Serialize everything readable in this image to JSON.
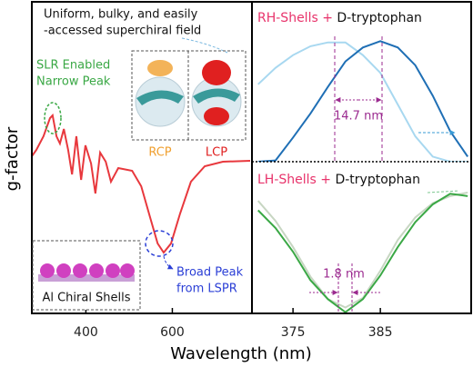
{
  "chart_data": [
    {
      "type": "line",
      "y_label": "g-factor",
      "x_label": "Wavelength (nm)",
      "x": [
        275,
        285.5,
        302,
        317,
        323,
        332,
        340,
        349,
        359,
        368,
        378,
        389,
        399,
        412,
        422,
        433,
        446,
        458,
        475,
        507,
        528,
        549,
        566,
        580,
        597,
        618,
        643,
        675,
        717,
        780
      ],
      "series": [
        {
          "color": "#e8383d",
          "values": [
            0.03,
            0.1,
            0.25,
            0.45,
            0.48,
            0.25,
            0.17,
            0.33,
            0.1,
            -0.17,
            0.25,
            -0.23,
            0.15,
            -0.05,
            -0.38,
            0.07,
            -0.03,
            -0.25,
            -0.1,
            -0.13,
            -0.3,
            -0.65,
            -0.93,
            -1.03,
            -0.93,
            -0.6,
            -0.25,
            -0.08,
            -0.03,
            -0.02
          ]
        }
      ],
      "xlim": [
        275,
        780
      ],
      "ylim": [
        -1.7,
        1.73
      ],
      "xticks": [
        400,
        600
      ],
      "annotations": {
        "field_line1": "Uniform, bulky, and easily",
        "field_line2": "-accessed superchiral field",
        "slr_line1": "SLR Enabled",
        "slr_line2": "Narrow Peak",
        "rcp": "RCP",
        "lcp": "LCP",
        "lspr_line1": "Broad Peak",
        "lspr_line2": "from LSPR",
        "inset": "Al Chiral Shells"
      }
    },
    {
      "type": "line",
      "title_colored": "RH-Shells +",
      "title_rest": "D-tryptophan",
      "x": [
        371,
        373,
        375,
        377,
        379,
        381,
        383,
        385,
        387,
        389,
        391,
        393,
        395
      ],
      "series": [
        {
          "color": "#a8d8f0",
          "values": [
            0.61,
            0.74,
            0.84,
            0.91,
            0.94,
            0.94,
            0.84,
            0.7,
            0.45,
            0.2,
            0.04,
            0,
            0
          ]
        },
        {
          "color": "#1f6fb5",
          "values": [
            0,
            0.01,
            0.19,
            0.38,
            0.59,
            0.79,
            0.9,
            0.95,
            0.9,
            0.76,
            0.52,
            0.24,
            0.04
          ]
        }
      ],
      "xlim": [
        370.3,
        395.4
      ],
      "ylim": [
        0,
        1.26
      ],
      "annotations": {
        "shift": "14.7 nm"
      }
    },
    {
      "type": "line",
      "title_colored": "LH-Shells +",
      "title_rest": "D-tryptophan",
      "x": [
        371,
        373,
        375,
        377,
        379,
        381,
        383,
        385,
        387,
        389,
        391,
        393,
        395
      ],
      "series": [
        {
          "color": "#c7d6c2",
          "values": [
            0.95,
            0.78,
            0.56,
            0.31,
            0.12,
            0.05,
            0.13,
            0.36,
            0.62,
            0.81,
            0.93,
            0.99,
            1.02
          ]
        },
        {
          "color": "#3aa845",
          "values": [
            0.87,
            0.72,
            0.52,
            0.28,
            0.12,
            0.01,
            0.12,
            0.32,
            0.56,
            0.77,
            0.92,
            1.01,
            0.99
          ]
        }
      ],
      "xlim": [
        370.3,
        395.4
      ],
      "ylim": [
        0,
        1.28
      ],
      "xticks": [
        375,
        385
      ],
      "annotations": {
        "shift": "1.8 nm"
      }
    }
  ]
}
